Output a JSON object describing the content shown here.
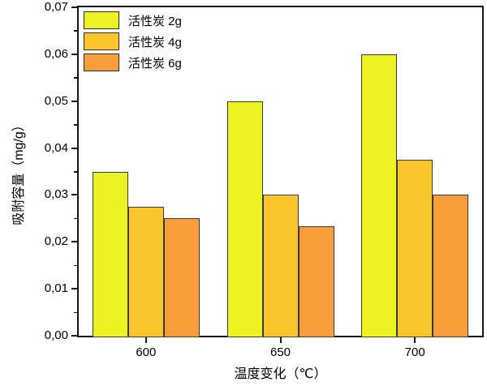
{
  "chart_data": {
    "type": "bar",
    "title": "",
    "categories": [
      "600",
      "650",
      "700"
    ],
    "series": [
      {
        "name": "活性炭 2g",
        "color": "#EDF222",
        "values": [
          0.035,
          0.05,
          0.06
        ]
      },
      {
        "name": "活性炭 4g",
        "color": "#FBC52D",
        "values": [
          0.0275,
          0.03,
          0.0375
        ]
      },
      {
        "name": "活性炭 6g",
        "color": "#FA9D3C",
        "values": [
          0.025,
          0.0233,
          0.03
        ]
      }
    ],
    "xlabel": "温度变化（℃）",
    "ylabel": "吸附容量（mg/g）",
    "ylim": [
      0,
      0.07
    ],
    "y_major_step": 0.01,
    "y_minor_step": 0.005,
    "y_tick_labels": [
      "0,00",
      "0,01",
      "0,02",
      "0,03",
      "0,04",
      "0,05",
      "0,06",
      "0,07"
    ],
    "decimal_separator": ",",
    "grid": false,
    "legend_position": "top-left",
    "bar_edge_color": "#3a3a3a",
    "frame_color": "#161616"
  }
}
